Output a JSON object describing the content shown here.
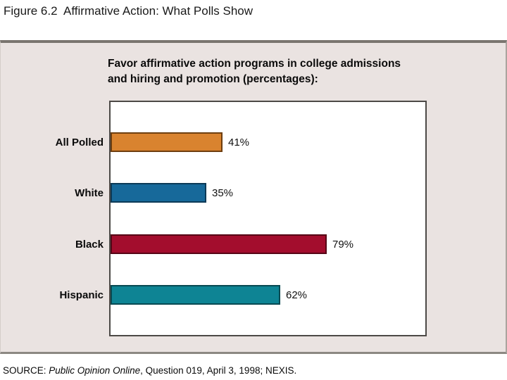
{
  "figure": {
    "title": "Figure 6.2  Affirmative Action: What Polls Show"
  },
  "panel": {
    "heading_lines": [
      "Favor affirmative action programs in college admissions",
      "and hiring and promotion (percentages):"
    ]
  },
  "chart_data": {
    "type": "bar",
    "orientation": "horizontal",
    "title": "Favor affirmative action programs in college admissions and hiring and promotion (percentages):",
    "categories": [
      "All Polled",
      "White",
      "Black",
      "Hispanic"
    ],
    "values": [
      41,
      35,
      79,
      62
    ],
    "value_labels": [
      "41%",
      "35%",
      "79%",
      "62%"
    ],
    "bar_colors": [
      "#d9832f",
      "#17699a",
      "#a30d2d",
      "#0e8494"
    ],
    "bar_border_colors": [
      "#6e3e0f",
      "#0c3a57",
      "#560616",
      "#084a52"
    ],
    "xlim": [
      0,
      116
    ],
    "grid": false,
    "legend": false
  },
  "source": {
    "prefix": "SOURCE: ",
    "publication": "Public Opinion Online",
    "rest": ", Question 019, April 3, 1998; NEXIS."
  },
  "colors": {
    "panel_bg": "#eae3e1",
    "chart_box_bg": "#ffffff",
    "chart_box_border": "#4c4946",
    "panel_border_top": "#7a756f",
    "text": "#000000"
  }
}
